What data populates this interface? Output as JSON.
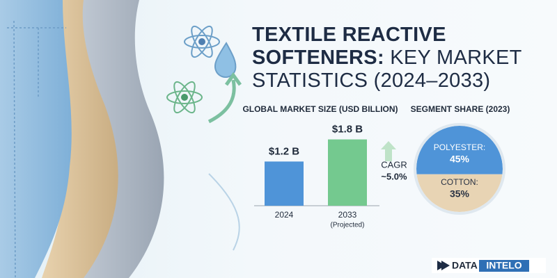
{
  "header": {
    "title": "TEXTILE REACTIVE SOFTENERS:",
    "subtitle": "KEY MARKET STATISTICS (2024–2033)"
  },
  "chart_data": [
    {
      "type": "bar",
      "title": "GLOBAL MARKET SIZE (USD BILLION)",
      "categories": [
        "2024",
        "2033"
      ],
      "category_notes": [
        null,
        "(Projected)"
      ],
      "values": [
        1.2,
        1.8
      ],
      "value_labels": [
        "$1.2 B",
        "$1.8 B"
      ],
      "colors": [
        "#4f94d8",
        "#74c98f"
      ],
      "annotation": [
        "CAGR",
        "~5.0%"
      ]
    },
    {
      "type": "pie",
      "title": "SEGMENT SHARE (2023)",
      "categories": [
        "POLYESTER:",
        "COTTON:"
      ],
      "values": [
        45,
        35
      ],
      "value_labels": [
        "45%",
        "35%"
      ],
      "colors": [
        "#4f94d8",
        "#e8d4b4"
      ],
      "label_colors": [
        "#ffffff",
        "#2a3344"
      ]
    }
  ],
  "logo": [
    "DATA",
    "INTELO"
  ]
}
